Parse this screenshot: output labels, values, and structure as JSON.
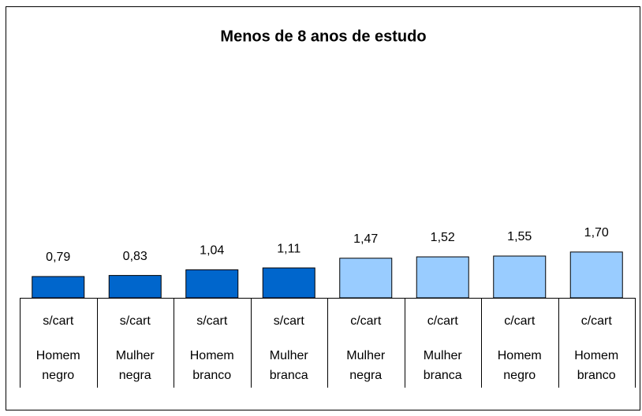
{
  "chart_data": {
    "type": "bar",
    "title": "Menos de 8 anos de estudo",
    "subcategories": [
      "s/cart",
      "s/cart",
      "s/cart",
      "s/cart",
      "c/cart",
      "c/cart",
      "c/cart",
      "c/cart"
    ],
    "categories": [
      "Homem negro",
      "Mulher negra",
      "Homem branco",
      "Mulher branca",
      "Mulher negra",
      "Mulher branca",
      "Homem negro",
      "Homem branco"
    ],
    "values": [
      0.79,
      0.83,
      1.04,
      1.11,
      1.47,
      1.52,
      1.55,
      1.7
    ],
    "value_labels": [
      "0,79",
      "0,83",
      "1,04",
      "1,11",
      "1,47",
      "1,52",
      "1,55",
      "1,70"
    ],
    "colors": [
      "#0066cc",
      "#0066cc",
      "#0066cc",
      "#0066cc",
      "#99ccff",
      "#99ccff",
      "#99ccff",
      "#99ccff"
    ]
  }
}
